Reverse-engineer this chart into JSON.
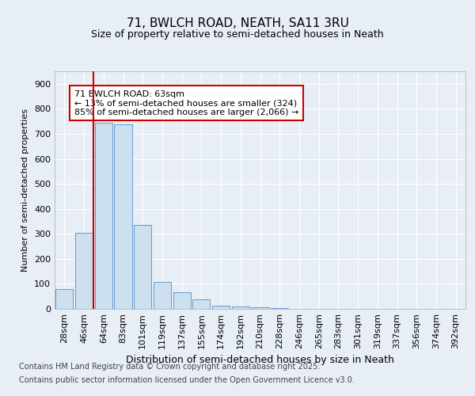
{
  "title_line1": "71, BWLCH ROAD, NEATH, SA11 3RU",
  "title_line2": "Size of property relative to semi-detached houses in Neath",
  "xlabel": "Distribution of semi-detached houses by size in Neath",
  "ylabel": "Number of semi-detached properties",
  "categories": [
    "28sqm",
    "46sqm",
    "64sqm",
    "83sqm",
    "101sqm",
    "119sqm",
    "137sqm",
    "155sqm",
    "174sqm",
    "192sqm",
    "210sqm",
    "228sqm",
    "246sqm",
    "265sqm",
    "283sqm",
    "301sqm",
    "319sqm",
    "337sqm",
    "356sqm",
    "374sqm",
    "392sqm"
  ],
  "values": [
    80,
    305,
    745,
    738,
    335,
    108,
    68,
    38,
    12,
    10,
    5,
    2,
    0,
    0,
    0,
    0,
    0,
    0,
    0,
    0,
    0
  ],
  "bar_color": "#cce0f0",
  "bar_edgecolor": "#6699cc",
  "redline_index": 2,
  "annotation_text": "71 BWLCH ROAD: 63sqm\n← 13% of semi-detached houses are smaller (324)\n85% of semi-detached houses are larger (2,066) →",
  "annotation_box_color": "#ffffff",
  "annotation_box_edgecolor": "#cc0000",
  "background_color": "#e8eef5",
  "plot_background": "#e8eef5",
  "ylim": [
    0,
    950
  ],
  "yticks": [
    0,
    100,
    200,
    300,
    400,
    500,
    600,
    700,
    800,
    900
  ],
  "footer_line1": "Contains HM Land Registry data © Crown copyright and database right 2025.",
  "footer_line2": "Contains public sector information licensed under the Open Government Licence v3.0.",
  "grid_color": "#ffffff",
  "redline_color": "#cc0000",
  "title_fontsize": 11,
  "subtitle_fontsize": 9,
  "ylabel_fontsize": 8,
  "xlabel_fontsize": 9,
  "tick_fontsize": 8,
  "annot_fontsize": 8,
  "footer_fontsize": 7
}
